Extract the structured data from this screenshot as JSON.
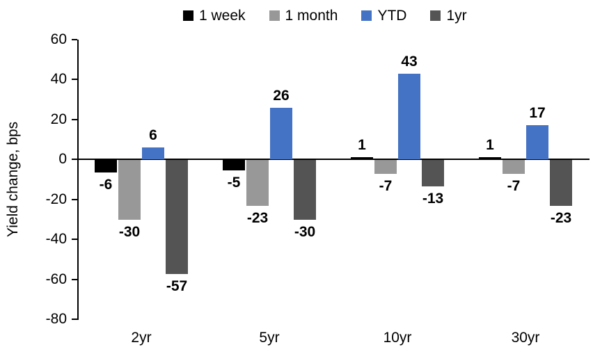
{
  "chart_data": {
    "type": "bar",
    "title": "",
    "ylabel": "Yield change, bps",
    "xlabel": "",
    "categories": [
      "2yr",
      "5yr",
      "10yr",
      "30yr"
    ],
    "series": [
      {
        "name": "1 week",
        "color": "#000000",
        "values": [
          -6,
          -5,
          1,
          1
        ]
      },
      {
        "name": "1 month",
        "color": "#989898",
        "values": [
          -30,
          -23,
          -7,
          -7
        ]
      },
      {
        "name": "YTD",
        "color": "#4472C4",
        "values": [
          6,
          26,
          43,
          17
        ]
      },
      {
        "name": "1yr",
        "color": "#545454",
        "values": [
          -57,
          -30,
          -13,
          -23
        ]
      }
    ],
    "ylim": [
      -80,
      60
    ],
    "yticks": [
      60,
      40,
      20,
      0,
      -20,
      -40,
      -60,
      -80
    ],
    "grid": "off",
    "legend_position": "top",
    "data_labels": "on",
    "axis_color": "#000000"
  }
}
